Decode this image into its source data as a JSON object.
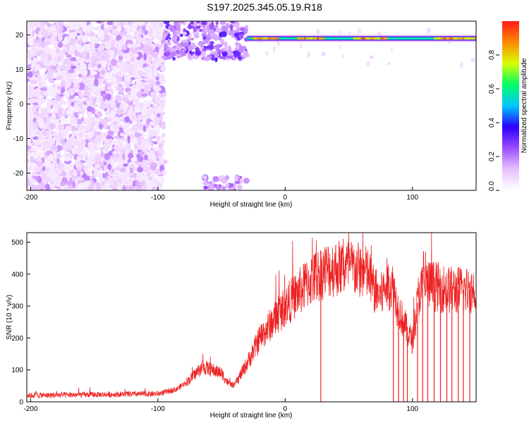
{
  "title": "S197.2025.345.05.19.R18",
  "chart_data": [
    {
      "type": "heatmap",
      "name": "spectrogram",
      "xlabel": "Height of straight line (km)",
      "ylabel": "Frequency (Hz)",
      "xlim": [
        -203,
        150
      ],
      "ylim": [
        -25,
        24
      ],
      "xticks": [
        -200,
        -100,
        0,
        100
      ],
      "yticks": [
        20,
        10,
        0,
        -10,
        -20
      ],
      "features": {
        "noise_region_x": [
          -203,
          -95
        ],
        "burst_region_x": [
          -95,
          -30
        ],
        "line_frequency_hz": 19,
        "line_start_km": -30,
        "high_segments_km": [
          [
            -25,
            -5
          ],
          [
            10,
            30
          ],
          [
            55,
            80
          ],
          [
            118,
            150
          ]
        ]
      },
      "colorbar": {
        "label": "Normalized spectral amplitude",
        "range": [
          0,
          1
        ],
        "ticks": [
          "0.0",
          "0.2",
          "0.4",
          "0.6",
          "0.8"
        ],
        "tick_values": [
          0.0,
          0.2,
          0.4,
          0.6,
          0.8
        ],
        "colormap": [
          "#ffffff",
          "#e8c0ff",
          "#9b4dff",
          "#2a00ff",
          "#00c8ff",
          "#00ff66",
          "#d8ff00",
          "#ff8a00",
          "#ff1a1a"
        ]
      }
    },
    {
      "type": "line",
      "name": "snr",
      "xlabel": "Height of straight line (km)",
      "ylabel": "SNR (10 * v/v)",
      "xlim": [
        -203,
        150
      ],
      "ylim": [
        0,
        530
      ],
      "xticks": [
        -200,
        -100,
        0,
        100
      ],
      "yticks": [
        0,
        100,
        200,
        300,
        400,
        500
      ],
      "color": "#ee2222",
      "envelope": [
        {
          "x": -203,
          "y": 20
        },
        {
          "x": -100,
          "y": 25
        },
        {
          "x": -85,
          "y": 40
        },
        {
          "x": -75,
          "y": 70
        },
        {
          "x": -65,
          "y": 110
        },
        {
          "x": -50,
          "y": 90
        },
        {
          "x": -45,
          "y": 60
        },
        {
          "x": -40,
          "y": 50
        },
        {
          "x": -30,
          "y": 120
        },
        {
          "x": -20,
          "y": 200
        },
        {
          "x": -10,
          "y": 250
        },
        {
          "x": 0,
          "y": 300
        },
        {
          "x": 10,
          "y": 340
        },
        {
          "x": 20,
          "y": 380
        },
        {
          "x": 30,
          "y": 410
        },
        {
          "x": 40,
          "y": 420
        },
        {
          "x": 50,
          "y": 420
        },
        {
          "x": 60,
          "y": 410
        },
        {
          "x": 65,
          "y": 400
        },
        {
          "x": 70,
          "y": 350
        },
        {
          "x": 75,
          "y": 330
        },
        {
          "x": 80,
          "y": 370
        },
        {
          "x": 85,
          "y": 360
        },
        {
          "x": 88,
          "y": 300
        },
        {
          "x": 92,
          "y": 260
        },
        {
          "x": 96,
          "y": 220
        },
        {
          "x": 100,
          "y": 190
        },
        {
          "x": 105,
          "y": 340
        },
        {
          "x": 110,
          "y": 370
        },
        {
          "x": 120,
          "y": 360
        },
        {
          "x": 130,
          "y": 350
        },
        {
          "x": 140,
          "y": 350
        },
        {
          "x": 150,
          "y": 350
        }
      ],
      "dropouts_km": [
        28,
        85,
        89,
        93,
        96,
        104,
        108,
        112,
        117,
        122,
        127,
        131,
        136,
        140,
        145
      ]
    }
  ]
}
